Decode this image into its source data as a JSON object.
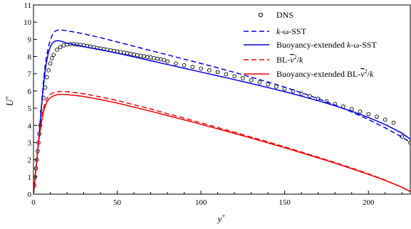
{
  "chart_data": {
    "type": "line",
    "title": "",
    "xlabel": "y+",
    "ylabel": "U+",
    "xlim": [
      0,
      225
    ],
    "ylim": [
      0,
      11
    ],
    "xticks": [
      0,
      50,
      100,
      150,
      200
    ],
    "yticks": [
      0,
      1,
      2,
      3,
      4,
      5,
      6,
      7,
      8,
      9,
      10,
      11
    ],
    "grid": false,
    "legend_position": "top-right",
    "series": [
      {
        "name": "DNS",
        "style": "markers",
        "color": "#000000",
        "x": [
          0.5,
          1,
          1.5,
          2,
          2.5,
          3,
          3.5,
          4,
          5,
          6,
          7,
          8,
          9,
          10,
          11,
          12,
          14,
          16,
          18,
          20,
          22,
          24,
          26,
          28,
          30,
          32,
          34,
          36,
          38,
          40,
          42,
          44,
          46,
          48,
          50,
          52,
          54,
          56,
          58,
          60,
          62,
          64,
          66,
          68,
          70,
          72,
          74,
          76,
          78,
          80,
          85,
          90,
          95,
          100,
          105,
          110,
          115,
          120,
          125,
          130,
          135,
          140,
          145,
          150,
          155,
          160,
          165,
          170,
          175,
          180,
          185,
          190,
          195,
          200,
          205,
          210,
          215,
          220,
          225
        ],
        "y": [
          0.5,
          1.0,
          1.5,
          2.0,
          2.5,
          3.0,
          3.5,
          4.0,
          4.8,
          5.6,
          6.2,
          6.8,
          7.2,
          7.6,
          7.9,
          8.1,
          8.4,
          8.55,
          8.65,
          8.7,
          8.72,
          8.72,
          8.7,
          8.68,
          8.65,
          8.62,
          8.58,
          8.55,
          8.5,
          8.47,
          8.43,
          8.4,
          8.36,
          8.33,
          8.3,
          8.26,
          8.23,
          8.2,
          8.16,
          8.12,
          8.08,
          8.05,
          8.02,
          7.98,
          7.95,
          7.91,
          7.88,
          7.84,
          7.8,
          7.72,
          7.6,
          7.5,
          7.4,
          7.3,
          7.2,
          7.1,
          6.97,
          6.86,
          6.74,
          6.62,
          6.5,
          6.38,
          6.25,
          6.12,
          5.98,
          5.84,
          5.7,
          5.55,
          5.4,
          5.25,
          5.1,
          4.95,
          4.8,
          4.65,
          4.5,
          4.33,
          4.15,
          3.35,
          3.0
        ]
      },
      {
        "name": "k-ω-SST",
        "style": "dashed",
        "color": "#0000dd",
        "x": [
          0,
          1,
          2,
          3,
          4,
          5,
          6,
          7,
          8,
          9,
          10,
          11,
          12,
          13,
          14,
          15,
          16,
          18,
          20,
          25,
          30,
          40,
          50,
          60,
          70,
          80,
          90,
          100,
          110,
          120,
          130,
          140,
          150,
          160,
          170,
          180,
          190,
          200,
          210,
          220,
          225
        ],
        "y": [
          0,
          1.0,
          2.0,
          3.0,
          4.2,
          5.4,
          6.6,
          7.5,
          8.1,
          8.6,
          8.95,
          9.2,
          9.38,
          9.48,
          9.53,
          9.55,
          9.55,
          9.53,
          9.5,
          9.42,
          9.32,
          9.1,
          8.85,
          8.6,
          8.35,
          8.1,
          7.85,
          7.6,
          7.35,
          7.08,
          6.8,
          6.52,
          6.22,
          5.9,
          5.55,
          5.18,
          4.78,
          4.34,
          3.86,
          3.32,
          3.02
        ]
      },
      {
        "name": "Buoyancy-extended k-ω-SST",
        "style": "solid",
        "color": "#0000dd",
        "x": [
          0,
          1,
          2,
          3,
          4,
          5,
          6,
          7,
          8,
          9,
          10,
          11,
          12,
          13,
          14,
          15,
          16,
          18,
          20,
          25,
          30,
          40,
          50,
          60,
          70,
          80,
          90,
          100,
          110,
          120,
          130,
          140,
          150,
          160,
          170,
          180,
          190,
          200,
          210,
          220,
          225
        ],
        "y": [
          0,
          1.0,
          2.0,
          3.0,
          4.2,
          5.3,
          6.3,
          7.2,
          7.8,
          8.25,
          8.55,
          8.75,
          8.85,
          8.9,
          8.92,
          8.92,
          8.9,
          8.85,
          8.78,
          8.68,
          8.58,
          8.4,
          8.2,
          7.98,
          7.76,
          7.54,
          7.32,
          7.1,
          6.88,
          6.66,
          6.43,
          6.2,
          5.96,
          5.7,
          5.43,
          5.14,
          4.82,
          4.46,
          4.05,
          3.55,
          3.2
        ]
      },
      {
        "name": "BL-v2/k",
        "style": "dashed",
        "color": "#ee0000",
        "x": [
          0,
          1,
          2,
          3,
          4,
          5,
          6,
          7,
          8,
          9,
          10,
          12,
          14,
          16,
          18,
          20,
          25,
          30,
          40,
          50,
          60,
          70,
          80,
          90,
          100,
          110,
          120,
          130,
          140,
          150,
          160,
          170,
          180,
          190,
          200,
          210,
          220,
          225
        ],
        "y": [
          0,
          1.0,
          2.0,
          3.0,
          3.8,
          4.5,
          5.0,
          5.3,
          5.55,
          5.7,
          5.8,
          5.9,
          5.95,
          5.97,
          5.97,
          5.96,
          5.9,
          5.84,
          5.65,
          5.45,
          5.2,
          4.95,
          4.68,
          4.42,
          4.15,
          3.88,
          3.6,
          3.32,
          3.04,
          2.75,
          2.45,
          2.15,
          1.84,
          1.52,
          1.18,
          0.82,
          0.4,
          0.15
        ]
      },
      {
        "name": "Buoyancy-extended BL-v2/k",
        "style": "solid",
        "color": "#ee0000",
        "x": [
          0,
          1,
          2,
          3,
          4,
          5,
          6,
          7,
          8,
          9,
          10,
          12,
          14,
          16,
          18,
          20,
          25,
          30,
          40,
          50,
          60,
          70,
          80,
          90,
          100,
          110,
          120,
          130,
          140,
          150,
          160,
          170,
          180,
          190,
          200,
          210,
          220,
          225
        ],
        "y": [
          0,
          1.0,
          2.0,
          3.0,
          3.7,
          4.3,
          4.8,
          5.1,
          5.35,
          5.5,
          5.6,
          5.72,
          5.78,
          5.8,
          5.8,
          5.79,
          5.74,
          5.68,
          5.5,
          5.3,
          5.06,
          4.82,
          4.57,
          4.32,
          4.06,
          3.8,
          3.53,
          3.26,
          2.98,
          2.7,
          2.41,
          2.11,
          1.8,
          1.48,
          1.15,
          0.8,
          0.4,
          0.15
        ]
      }
    ]
  },
  "legend": {
    "dns": "DNS",
    "sst_pre": "k",
    "sst_post": "-ω-SST",
    "bsst_pre": "Buoyancy-extended ",
    "bsst_k": "k",
    "bsst_post": "-ω-SST",
    "bl_pre": "BL-",
    "bl_v": "v",
    "bl_mid": "2",
    "bl_slash": "/",
    "bl_k": "k",
    "bbl_pre": "Buoyancy-extended BL-",
    "bbl_v": "v",
    "bbl_mid": "2",
    "bbl_slash": "/",
    "bbl_k": "k"
  },
  "axes": {
    "x_base": "y",
    "x_sup": "+",
    "y_base": "U",
    "y_sup": "+"
  }
}
